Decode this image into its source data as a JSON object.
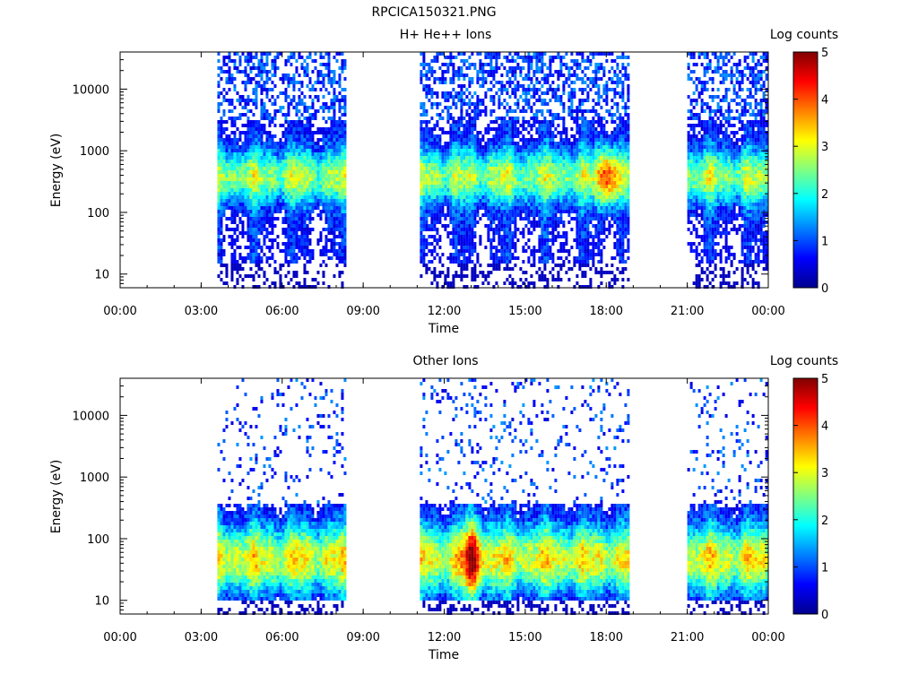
{
  "figure": {
    "title": "RPCICA150321.PNG",
    "background": "#ffffff"
  },
  "colorscale": [
    "#00008f",
    "#0000ff",
    "#0080ff",
    "#00ffff",
    "#80ff80",
    "#ffff00",
    "#ff8000",
    "#ff0000",
    "#800000"
  ],
  "chart_data": [
    {
      "type": "heatmap",
      "title": "H+ He++ Ions",
      "xlabel": "Time",
      "ylabel": "Energy (eV)",
      "xlim": [
        0,
        24
      ],
      "ylim": [
        6,
        40000
      ],
      "yscale": "log",
      "x_ticks": [
        0,
        3,
        6,
        9,
        12,
        15,
        18,
        21,
        24
      ],
      "x_tick_labels": [
        "00:00",
        "03:00",
        "06:00",
        "09:00",
        "12:00",
        "15:00",
        "18:00",
        "21:00",
        "00:00"
      ],
      "y_ticks": [
        10,
        100,
        1000,
        10000
      ],
      "y_tick_labels": [
        "10",
        "100",
        "1000",
        "10000"
      ],
      "colorbar": {
        "label": "Log counts",
        "range": [
          0,
          5
        ],
        "ticks": [
          0,
          1,
          2,
          3,
          4,
          5
        ],
        "tick_labels": [
          "0",
          "1",
          "2",
          "3",
          "4",
          "5"
        ]
      },
      "data_intervals": [
        [
          3.6,
          8.3
        ],
        [
          11.1,
          18.8
        ],
        [
          21.0,
          23.9
        ]
      ],
      "band": {
        "center_eV": 400,
        "low_eV": 30,
        "peak_log_counts": 4.3,
        "peak_time": 18.0
      }
    },
    {
      "type": "heatmap",
      "title": "Other Ions",
      "xlabel": "Time",
      "ylabel": "Energy (eV)",
      "xlim": [
        0,
        24
      ],
      "ylim": [
        6,
        40000
      ],
      "yscale": "log",
      "x_ticks": [
        0,
        3,
        6,
        9,
        12,
        15,
        18,
        21,
        24
      ],
      "x_tick_labels": [
        "00:00",
        "03:00",
        "06:00",
        "09:00",
        "12:00",
        "15:00",
        "18:00",
        "21:00",
        "00:00"
      ],
      "y_ticks": [
        10,
        100,
        1000,
        10000
      ],
      "y_tick_labels": [
        "10",
        "100",
        "1000",
        "10000"
      ],
      "colorbar": {
        "label": "Log counts",
        "range": [
          0,
          5
        ],
        "ticks": [
          0,
          1,
          2,
          3,
          4,
          5
        ],
        "tick_labels": [
          "0",
          "1",
          "2",
          "3",
          "4",
          "5"
        ]
      },
      "data_intervals": [
        [
          3.6,
          8.3
        ],
        [
          11.1,
          18.8
        ],
        [
          21.0,
          23.9
        ]
      ],
      "band": {
        "center_eV": 50,
        "low_eV": 20,
        "peak_log_counts": 4.5,
        "peak_time": 13.0
      }
    }
  ]
}
